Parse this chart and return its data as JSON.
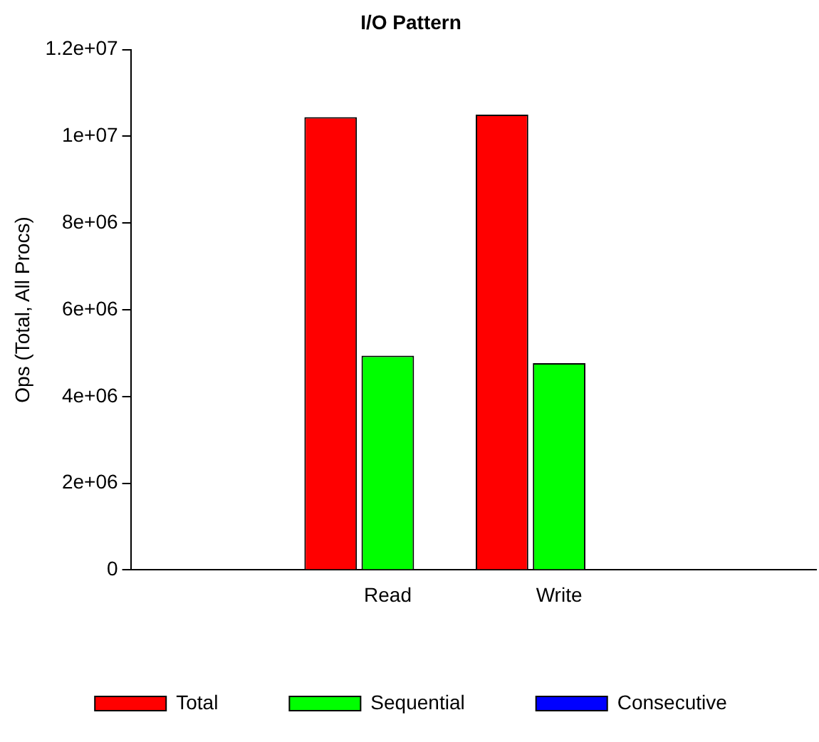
{
  "chart_data": {
    "type": "bar",
    "title": "I/O Pattern",
    "ylabel": "Ops (Total, All Procs)",
    "categories": [
      null,
      "Read",
      "Write",
      null
    ],
    "series": [
      {
        "name": "Total",
        "color": "#ff0000",
        "values": [
          null,
          10440000,
          10500000,
          null
        ]
      },
      {
        "name": "Sequential",
        "color": "#00ff00",
        "values": [
          null,
          4940000,
          4770000,
          null
        ]
      },
      {
        "name": "Consecutive",
        "color": "#0000ff",
        "values": [
          null,
          null,
          null,
          null
        ]
      }
    ],
    "ylim": [
      0,
      12000000
    ],
    "yticks": [
      {
        "value": 0,
        "label": "0"
      },
      {
        "value": 2000000,
        "label": "2e+06"
      },
      {
        "value": 4000000,
        "label": "4e+06"
      },
      {
        "value": 6000000,
        "label": "6e+06"
      },
      {
        "value": 8000000,
        "label": "8e+06"
      },
      {
        "value": 10000000,
        "label": "1e+07"
      },
      {
        "value": 12000000,
        "label": "1.2e+07"
      }
    ],
    "grid": false,
    "legend": "bottom"
  }
}
